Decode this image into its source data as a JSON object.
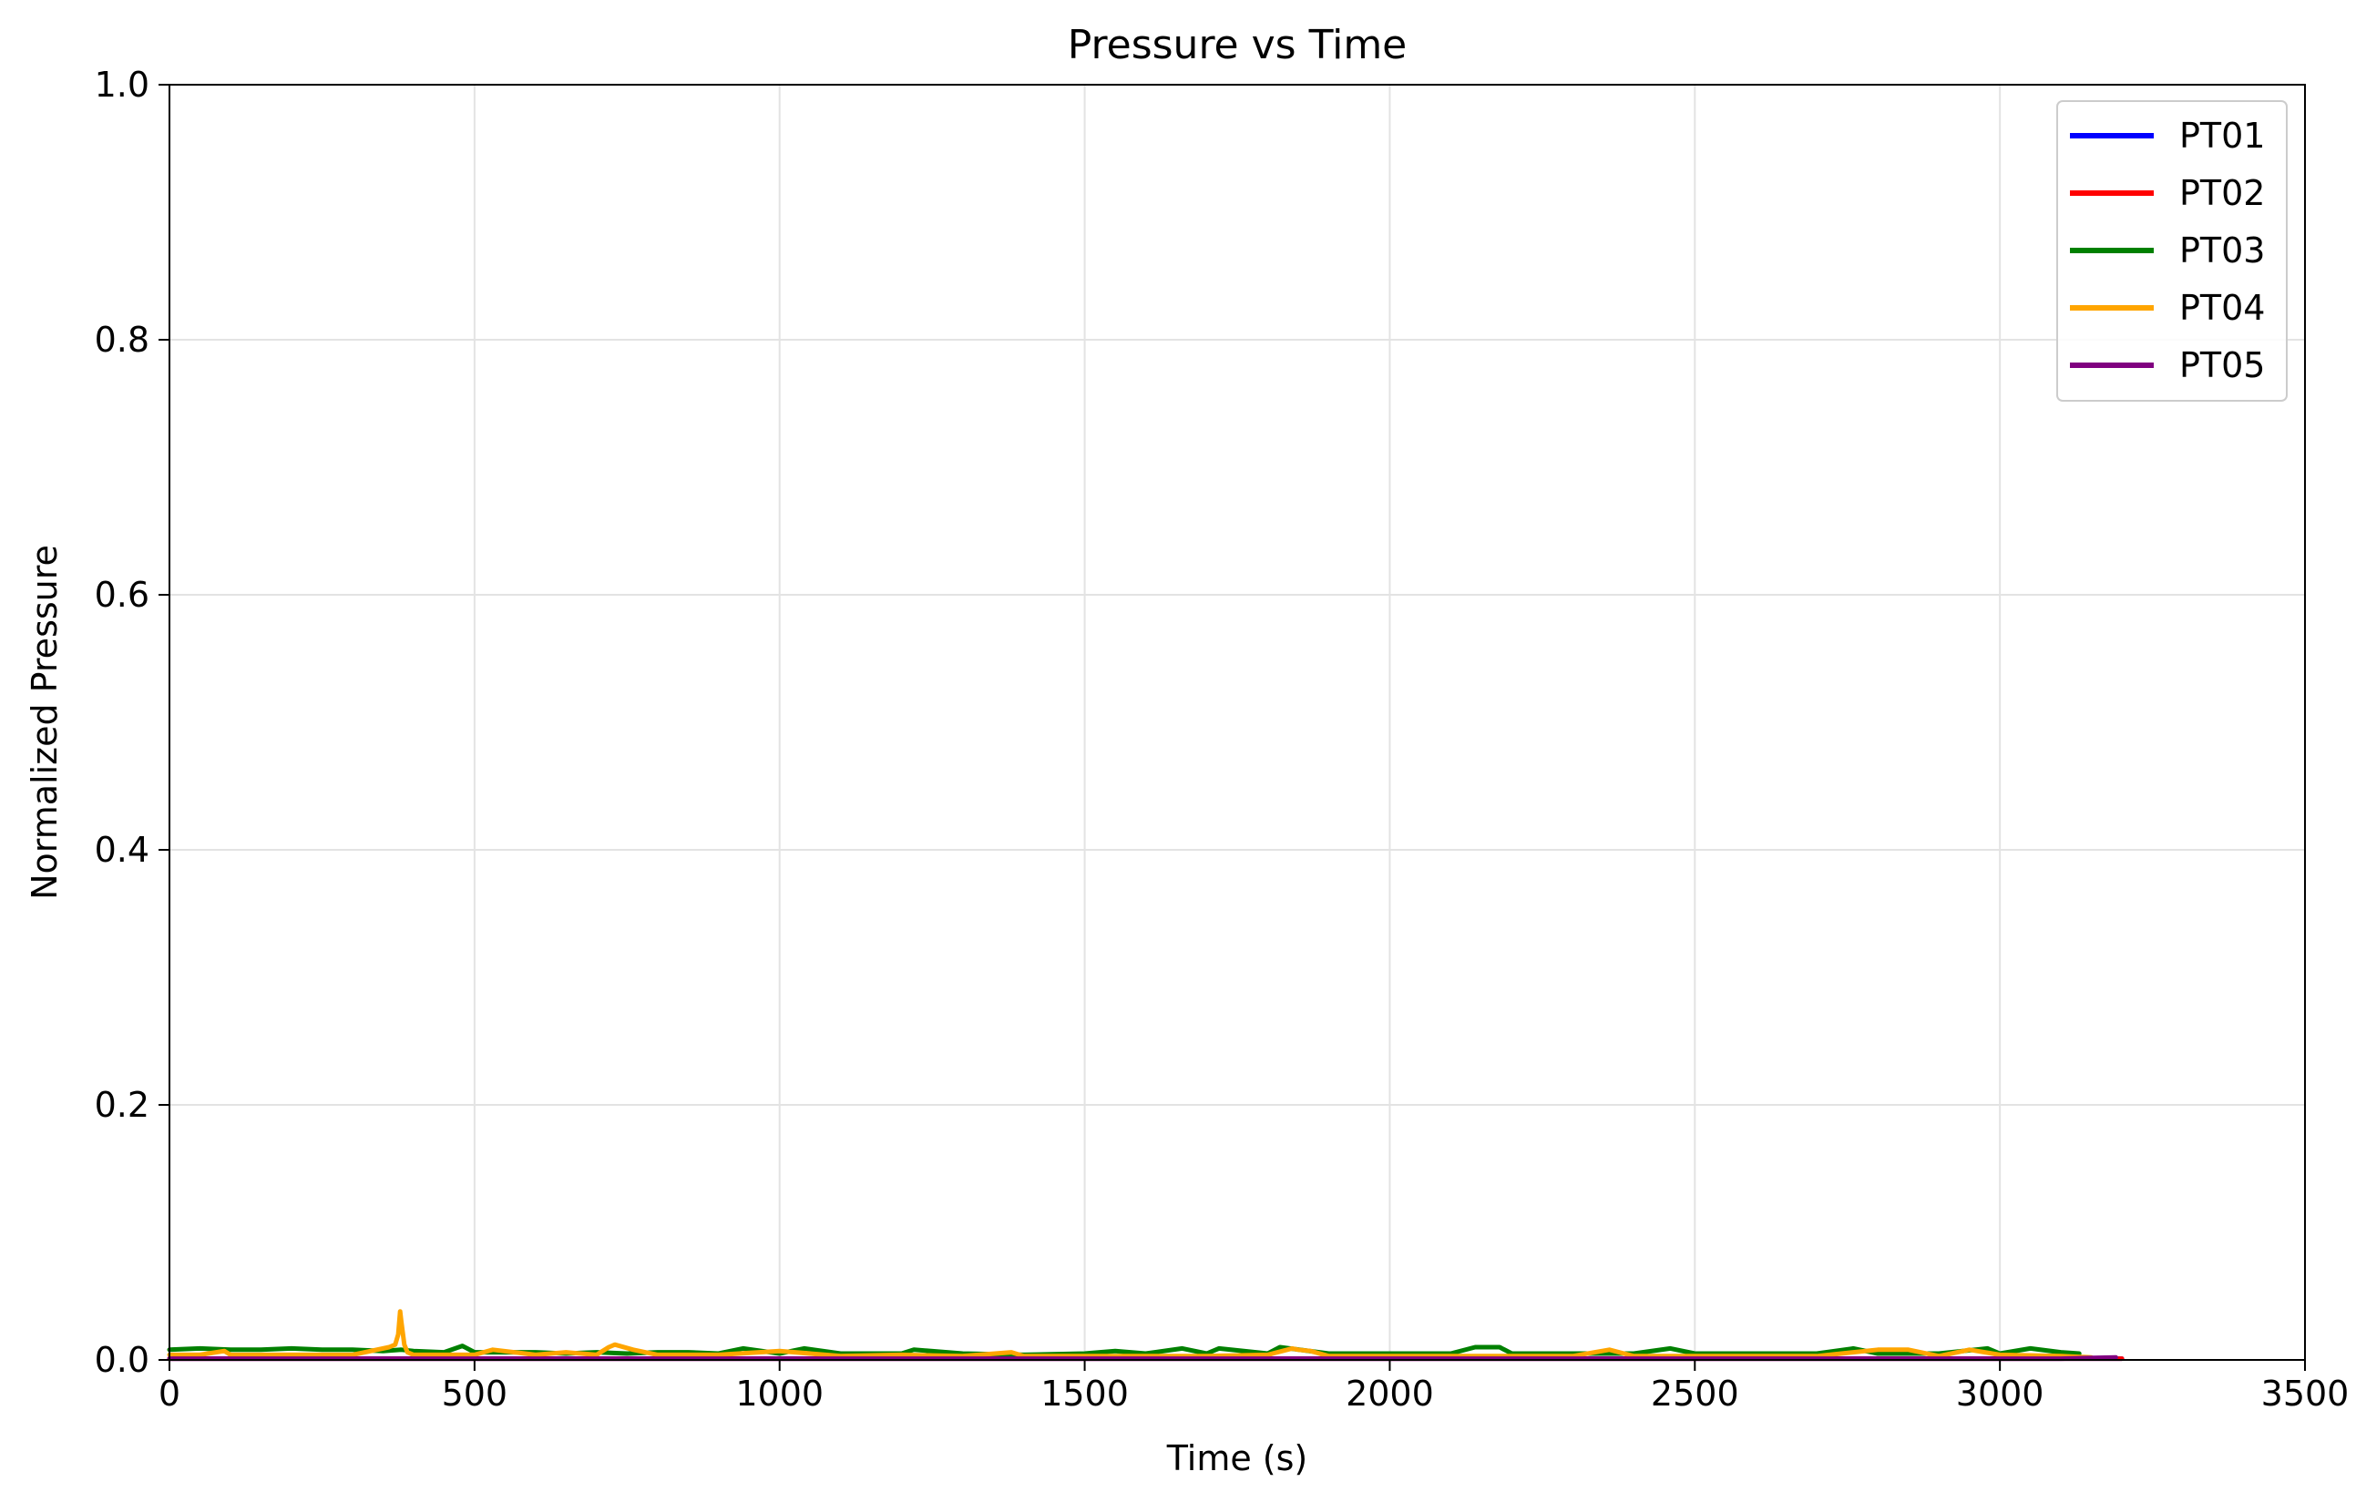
{
  "chart_data": {
    "type": "line",
    "title": "Pressure vs Time",
    "xlabel": "Time (s)",
    "ylabel": "Normalized Pressure",
    "xlim": [
      0,
      3500
    ],
    "ylim": [
      0,
      1.0
    ],
    "xticks": [
      0,
      500,
      1000,
      1500,
      2000,
      2500,
      3000,
      3500
    ],
    "yticks": [
      0.0,
      0.2,
      0.4,
      0.6,
      0.8,
      1.0
    ],
    "xtick_labels": [
      "0",
      "500",
      "1000",
      "1500",
      "2000",
      "2500",
      "3000",
      "3500"
    ],
    "ytick_labels": [
      "0.0",
      "0.2",
      "0.4",
      "0.6",
      "0.8",
      "1.0"
    ],
    "grid": true,
    "legend_position": "top-right",
    "series": [
      {
        "name": "PT01",
        "color": "#0000ff",
        "x": [
          0,
          500,
          1000,
          1500,
          2000,
          2500,
          3000,
          3200
        ],
        "y": [
          0.001,
          0.001,
          0.001,
          0.001,
          0.001,
          0.001,
          0.001,
          0.001
        ]
      },
      {
        "name": "PT02",
        "color": "#ff0000",
        "x": [
          0,
          500,
          1000,
          1500,
          2000,
          2500,
          3000,
          3200
        ],
        "y": [
          0.001,
          0.001,
          0.001,
          0.001,
          0.001,
          0.001,
          0.001,
          0.001
        ]
      },
      {
        "name": "PT03",
        "color": "#008000",
        "x": [
          0,
          50,
          100,
          150,
          200,
          250,
          300,
          350,
          380,
          400,
          450,
          480,
          500,
          550,
          600,
          650,
          700,
          750,
          800,
          850,
          900,
          940,
          1000,
          1040,
          1100,
          1150,
          1200,
          1220,
          1300,
          1400,
          1500,
          1550,
          1600,
          1660,
          1700,
          1720,
          1800,
          1820,
          1900,
          2000,
          2100,
          2140,
          2180,
          2200,
          2300,
          2400,
          2460,
          2500,
          2600,
          2700,
          2760,
          2800,
          2900,
          2980,
          3000,
          3050,
          3100,
          3130
        ],
        "y": [
          0.008,
          0.009,
          0.008,
          0.008,
          0.009,
          0.008,
          0.008,
          0.007,
          0.008,
          0.007,
          0.006,
          0.011,
          0.006,
          0.006,
          0.006,
          0.005,
          0.006,
          0.005,
          0.006,
          0.006,
          0.005,
          0.009,
          0.005,
          0.009,
          0.005,
          0.005,
          0.005,
          0.008,
          0.005,
          0.004,
          0.005,
          0.007,
          0.005,
          0.009,
          0.005,
          0.009,
          0.005,
          0.01,
          0.005,
          0.005,
          0.005,
          0.01,
          0.01,
          0.005,
          0.005,
          0.005,
          0.009,
          0.005,
          0.005,
          0.005,
          0.009,
          0.005,
          0.005,
          0.009,
          0.005,
          0.009,
          0.006,
          0.005
        ]
      },
      {
        "name": "PT04",
        "color": "#ffa500",
        "x": [
          0,
          50,
          90,
          100,
          200,
          300,
          360,
          370,
          375,
          378,
          380,
          385,
          390,
          400,
          450,
          500,
          530,
          600,
          650,
          700,
          720,
          730,
          760,
          800,
          900,
          1000,
          1100,
          1200,
          1300,
          1380,
          1400,
          1500,
          1600,
          1700,
          1800,
          1840,
          1850,
          1870,
          1900,
          2000,
          2100,
          2200,
          2300,
          2360,
          2400,
          2500,
          2600,
          2700,
          2800,
          2850,
          2900,
          2950,
          3000,
          3100,
          3150
        ],
        "y": [
          0.004,
          0.004,
          0.007,
          0.004,
          0.004,
          0.004,
          0.01,
          0.012,
          0.02,
          0.038,
          0.03,
          0.012,
          0.006,
          0.004,
          0.004,
          0.004,
          0.008,
          0.004,
          0.006,
          0.004,
          0.01,
          0.012,
          0.008,
          0.004,
          0.004,
          0.007,
          0.003,
          0.004,
          0.003,
          0.006,
          0.003,
          0.003,
          0.003,
          0.003,
          0.004,
          0.009,
          0.008,
          0.007,
          0.003,
          0.003,
          0.003,
          0.003,
          0.003,
          0.008,
          0.003,
          0.003,
          0.003,
          0.003,
          0.008,
          0.008,
          0.003,
          0.008,
          0.004,
          0.003,
          0.002
        ]
      },
      {
        "name": "PT05",
        "color": "#800080",
        "x": [
          0,
          500,
          1000,
          1500,
          2000,
          2500,
          3000,
          3100,
          3190
        ],
        "y": [
          0.001,
          0.001,
          0.001,
          0.001,
          0.001,
          0.001,
          0.001,
          0.001,
          0.002
        ]
      }
    ]
  }
}
